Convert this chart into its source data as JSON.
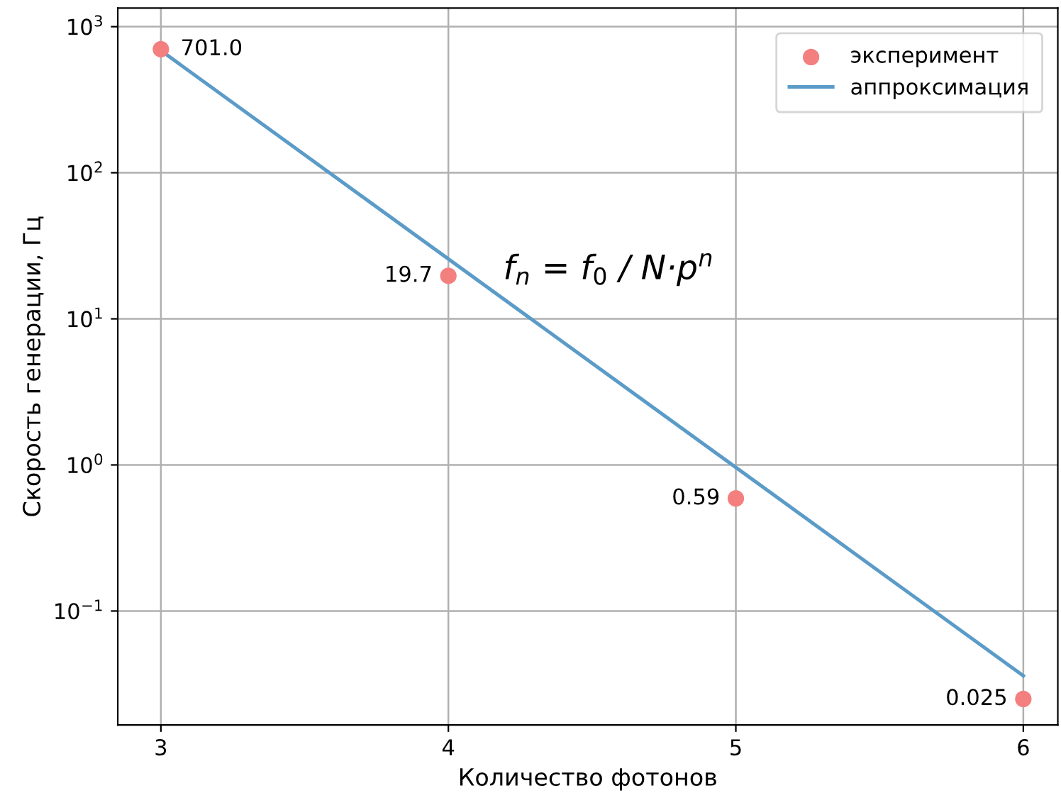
{
  "chart_data": {
    "type": "scatter",
    "xlabel": "Количество фотонов",
    "ylabel": "Скорость генерации, Гц",
    "log": "y",
    "grid": true,
    "legend": "top right",
    "xlim": [
      2.85,
      6.12
    ],
    "ylim": [
      0.0166,
      1340
    ],
    "xticks": [
      3,
      4,
      5,
      6
    ],
    "yticks": [
      {
        "value": 0.1,
        "label": "10$^{−1}$"
      },
      {
        "value": 1,
        "label": "10$^{0}$"
      },
      {
        "value": 10,
        "label": "10$^{1}$"
      },
      {
        "value": 100,
        "label": "10$^{2}$"
      },
      {
        "value": 1000,
        "label": "10$^{3}$"
      }
    ],
    "series": [
      {
        "name": "эксперимент",
        "color": "#f47f7f",
        "marker": "circle",
        "x": [
          3,
          4,
          5,
          6
        ],
        "values": [
          701.0,
          19.7,
          0.59,
          0.025
        ],
        "value_labels": [
          "701.0",
          "19.7",
          "0.59",
          "0.025"
        ]
      },
      {
        "name": "аппроксимация",
        "type": "line",
        "color": "#5b9bc8",
        "line_style": "solid",
        "x": [
          3,
          6
        ],
        "values": [
          686,
          0.036
        ]
      }
    ],
    "annotations": [
      "f$_{n}$ = f$_{0}$ / N·p$^{n}$"
    ]
  }
}
